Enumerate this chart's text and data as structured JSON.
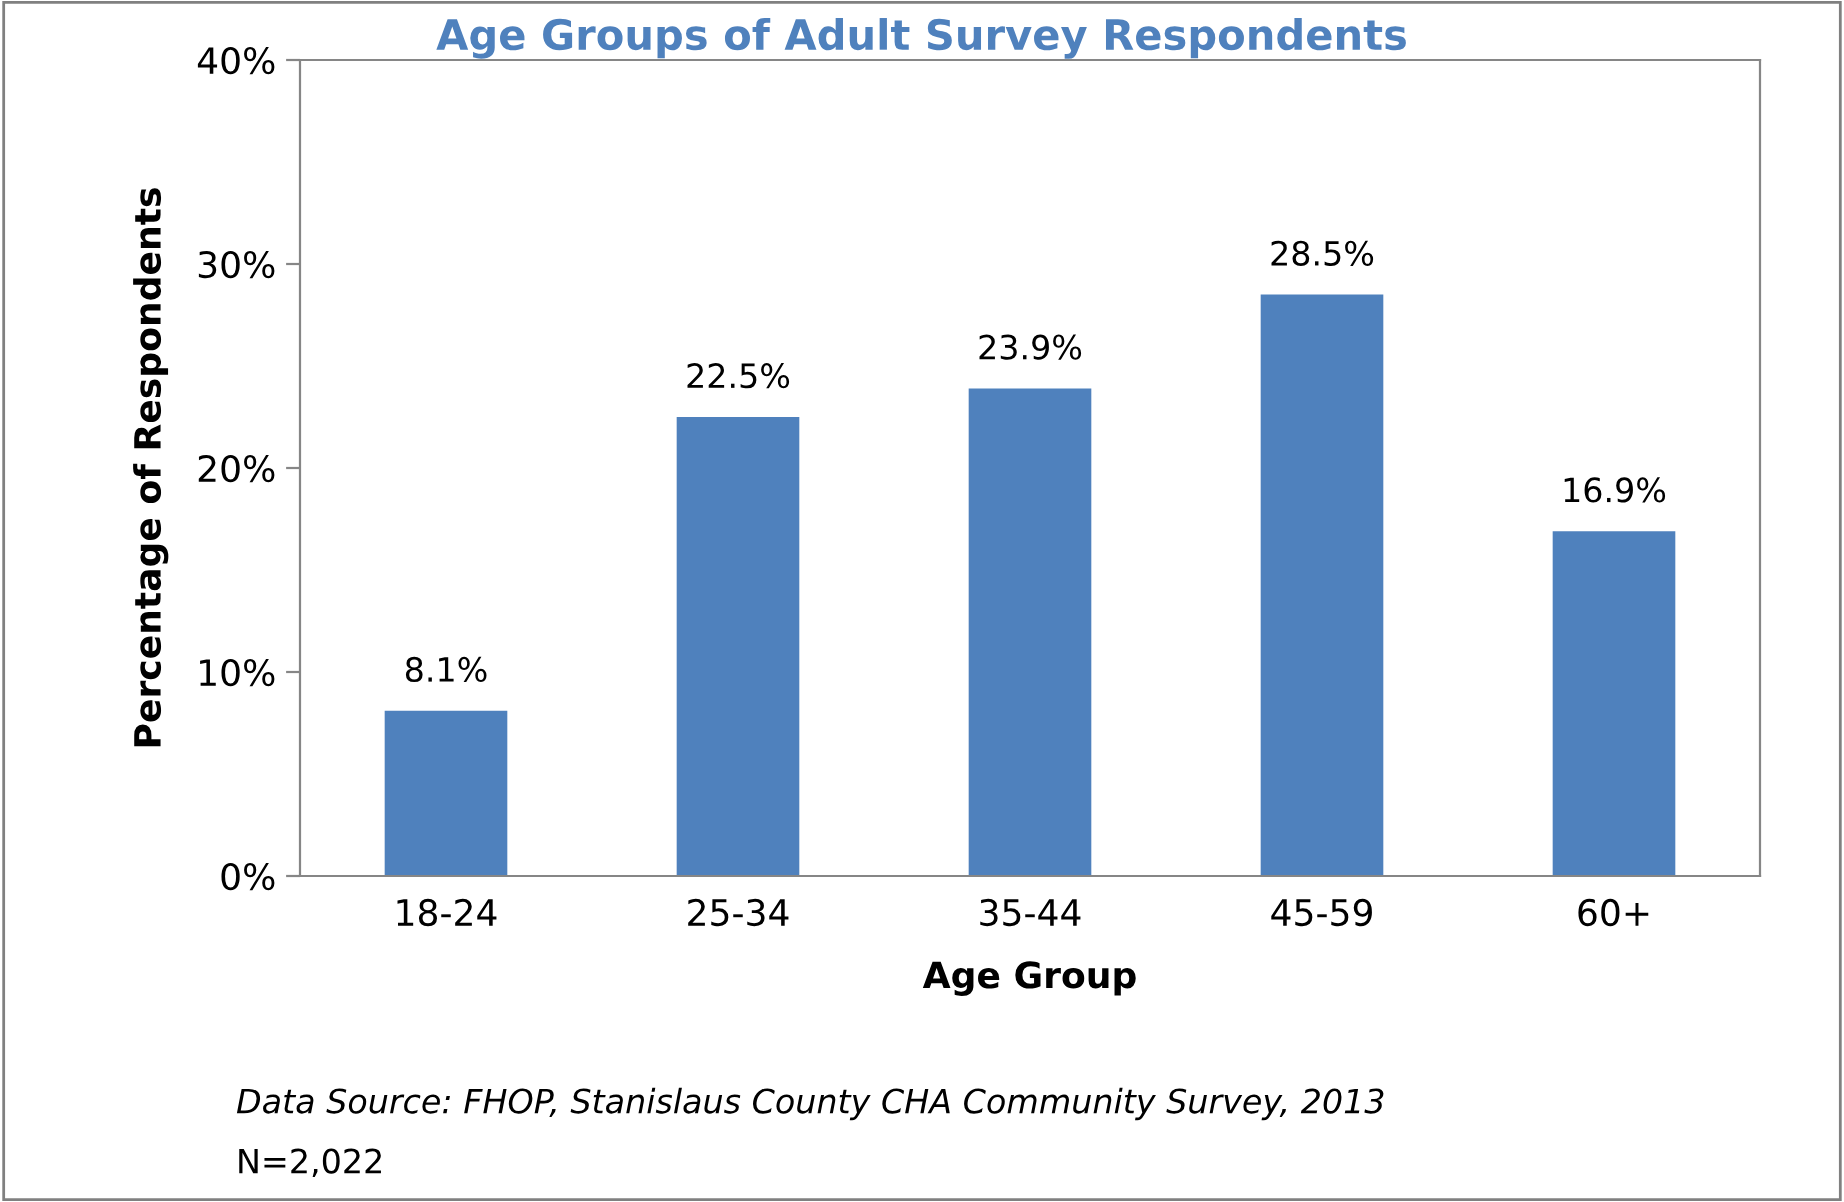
{
  "chart_data": {
    "type": "bar",
    "title": "Age Groups of Adult Survey Respondents",
    "xlabel": "Age Group",
    "ylabel": "Percentage of Respondents",
    "categories": [
      "18-24",
      "25-34",
      "35-44",
      "45-59",
      "60+"
    ],
    "values": [
      8.1,
      22.5,
      23.9,
      28.5,
      16.9
    ],
    "color": "#4f81bd",
    "value_labels": [
      "8.1%",
      "22.5%",
      "23.9%",
      "28.5%",
      "16.9%"
    ],
    "ylim": [
      0,
      40
    ],
    "yticks": [
      {
        "value": 0,
        "label": "0%"
      },
      {
        "value": 10,
        "label": "10%"
      },
      {
        "value": 20,
        "label": "20%"
      },
      {
        "value": 30,
        "label": "30%"
      },
      {
        "value": 40,
        "label": "40%"
      }
    ],
    "grid": false,
    "legend": false,
    "annotations": [
      "Data Source: FHOP, Stanislaus County CHA Community Survey, 2013",
      "N=2,022"
    ]
  }
}
